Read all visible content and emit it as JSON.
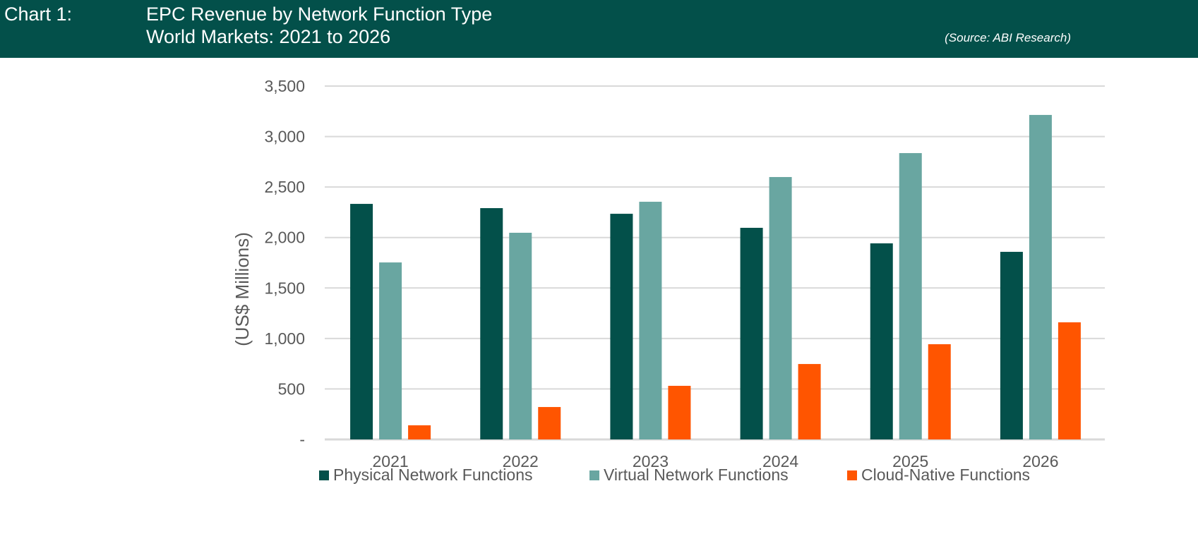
{
  "header": {
    "label": "Chart 1:",
    "title": "EPC Revenue by Network Function Type",
    "subtitle": "World Markets: 2021 to 2026",
    "source": "(Source: ABI Research)"
  },
  "chart_data": {
    "type": "bar",
    "title": "EPC Revenue by Network Function Type",
    "subtitle": "World Markets: 2021 to 2026",
    "xlabel": "",
    "ylabel": "(US$ Millions)",
    "ylim": [
      0,
      3500
    ],
    "yticks": [
      "-",
      "500",
      "1,000",
      "1,500",
      "2,000",
      "2,500",
      "3,000",
      "3,500"
    ],
    "grid": true,
    "legend": "bottom",
    "categories": [
      "2021",
      "2022",
      "2023",
      "2024",
      "2025",
      "2026"
    ],
    "series": [
      {
        "name": "Physical Network Functions",
        "color": "#03504a",
        "values": [
          2333,
          2291,
          2235,
          2096,
          1942,
          1858
        ]
      },
      {
        "name": "Virtual Network Functions",
        "color": "#69a6a1",
        "values": [
          1753,
          2047,
          2354,
          2599,
          2836,
          3214
        ]
      },
      {
        "name": "Cloud-Native Functions",
        "color": "#ff5500",
        "values": [
          140,
          321,
          531,
          747,
          943,
          1160
        ]
      }
    ]
  }
}
